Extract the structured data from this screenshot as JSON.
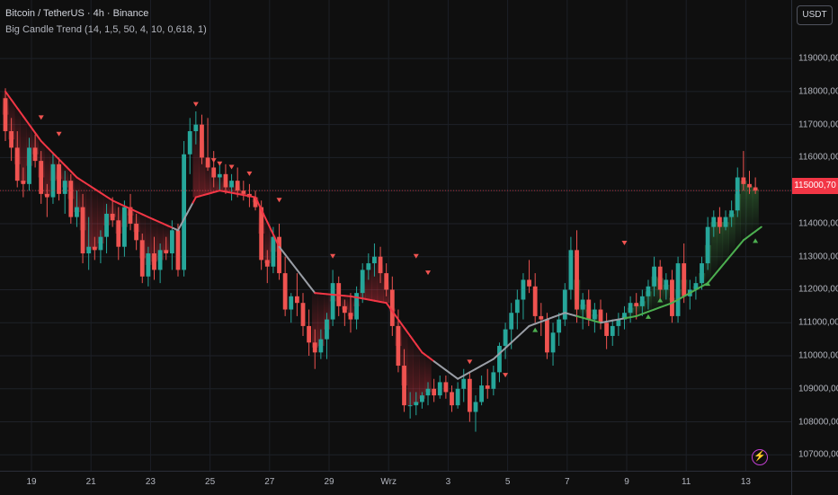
{
  "header": {
    "title": "Bitcoin / TetherUS · 4h · Binance",
    "indicator": "Big Candle Trend (14, 1,5, 50, 4, 10, 0,618, 1)"
  },
  "currency_button": "USDT",
  "last_price": "115000,70",
  "chart_data": {
    "type": "candlestick",
    "price_ticks": [
      "119000,00",
      "118000,00",
      "117000,00",
      "116000,00",
      "115000,00",
      "114000,00",
      "113000,00",
      "112000,00",
      "111000,00",
      "110000,00",
      "109000,00",
      "108000,00",
      "107000,00"
    ],
    "time_ticks": [
      "19",
      "21",
      "23",
      "25",
      "27",
      "29",
      "Wrz",
      "3",
      "5",
      "7",
      "9",
      "11",
      "13"
    ],
    "ylim": [
      106600,
      120500
    ],
    "last_price_value": 115000.7,
    "candles": [
      [
        0,
        117800,
        118100,
        116500,
        116800
      ],
      [
        1,
        116800,
        117200,
        115900,
        116300
      ],
      [
        2,
        116300,
        116800,
        115100,
        115300
      ],
      [
        3,
        115300,
        115700,
        114800,
        115200
      ],
      [
        4,
        115200,
        116600,
        115000,
        116300
      ],
      [
        5,
        116300,
        116700,
        115700,
        115900
      ],
      [
        6,
        115900,
        116200,
        114600,
        114900
      ],
      [
        7,
        114900,
        115200,
        114200,
        114800
      ],
      [
        8,
        114800,
        116100,
        114600,
        115800
      ],
      [
        9,
        115800,
        116000,
        114700,
        114900
      ],
      [
        10,
        114900,
        115600,
        114300,
        115300
      ],
      [
        11,
        115300,
        115500,
        114000,
        114200
      ],
      [
        12,
        114200,
        115000,
        113900,
        114500
      ],
      [
        13,
        114500,
        114900,
        112800,
        113100
      ],
      [
        14,
        113100,
        114200,
        112600,
        113300
      ],
      [
        15,
        113300,
        113600,
        112900,
        113200
      ],
      [
        16,
        113200,
        113800,
        112800,
        113600
      ],
      [
        17,
        113600,
        114600,
        113100,
        114300
      ],
      [
        18,
        114300,
        114800,
        113900,
        114100
      ],
      [
        19,
        114100,
        114500,
        112900,
        113300
      ],
      [
        20,
        113300,
        114700,
        113000,
        114500
      ],
      [
        21,
        114500,
        114900,
        113800,
        114000
      ],
      [
        22,
        114000,
        114300,
        113200,
        113500
      ],
      [
        23,
        113500,
        113700,
        112200,
        112400
      ],
      [
        24,
        112400,
        113300,
        112100,
        113100
      ],
      [
        25,
        113100,
        113600,
        112300,
        112600
      ],
      [
        26,
        112600,
        113400,
        112200,
        113200
      ],
      [
        27,
        113200,
        113600,
        112900,
        113100
      ],
      [
        28,
        113100,
        114100,
        112600,
        113800
      ],
      [
        29,
        113800,
        114000,
        112400,
        112600
      ],
      [
        30,
        112600,
        116500,
        112400,
        116100
      ],
      [
        31,
        116100,
        117200,
        115500,
        116800
      ],
      [
        32,
        116800,
        117400,
        116400,
        117000
      ],
      [
        33,
        117000,
        117300,
        115800,
        116000
      ],
      [
        34,
        116000,
        117200,
        115600,
        115700
      ],
      [
        35,
        115700,
        116200,
        115100,
        115400
      ],
      [
        36,
        115400,
        115800,
        115000,
        115500
      ],
      [
        37,
        115500,
        115800,
        114900,
        115100
      ],
      [
        38,
        115100,
        115500,
        114700,
        115300
      ],
      [
        39,
        115300,
        115700,
        114800,
        115000
      ],
      [
        40,
        115000,
        115300,
        114700,
        114900
      ],
      [
        41,
        114900,
        115200,
        114500,
        114800
      ],
      [
        42,
        114800,
        115000,
        114400,
        114500
      ],
      [
        43,
        114500,
        114700,
        112600,
        112900
      ],
      [
        44,
        112900,
        113200,
        112200,
        112700
      ],
      [
        45,
        112700,
        113900,
        112500,
        113600
      ],
      [
        46,
        113600,
        114000,
        112300,
        112500
      ],
      [
        47,
        112500,
        113000,
        111200,
        111400
      ],
      [
        48,
        111400,
        111900,
        111000,
        111800
      ],
      [
        49,
        111800,
        112500,
        111200,
        111600
      ],
      [
        50,
        111600,
        111900,
        110600,
        110900
      ],
      [
        51,
        110900,
        111400,
        110000,
        110400
      ],
      [
        52,
        110400,
        110800,
        109600,
        110100
      ],
      [
        53,
        110100,
        110800,
        109900,
        110500
      ],
      [
        54,
        110500,
        111300,
        109900,
        111100
      ],
      [
        55,
        111100,
        112600,
        110900,
        112200
      ],
      [
        56,
        112200,
        112400,
        111200,
        111500
      ],
      [
        57,
        111500,
        111700,
        110900,
        111300
      ],
      [
        58,
        111300,
        111900,
        110700,
        111100
      ],
      [
        59,
        111100,
        112100,
        110800,
        111900
      ],
      [
        60,
        111900,
        112800,
        111600,
        112600
      ],
      [
        61,
        112600,
        113100,
        112300,
        112800
      ],
      [
        62,
        112800,
        113400,
        112400,
        113000
      ],
      [
        63,
        113000,
        113300,
        112200,
        112500
      ],
      [
        64,
        112500,
        112800,
        111800,
        112000
      ],
      [
        65,
        112000,
        112400,
        110600,
        110900
      ],
      [
        66,
        110900,
        111400,
        109500,
        109700
      ],
      [
        67,
        109700,
        110200,
        108300,
        108500
      ],
      [
        68,
        108500,
        108900,
        108100,
        108500
      ],
      [
        69,
        108500,
        108900,
        108200,
        108600
      ],
      [
        70,
        108600,
        108900,
        108400,
        108800
      ],
      [
        71,
        108800,
        109200,
        108500,
        109000
      ],
      [
        72,
        109000,
        109300,
        108600,
        108800
      ],
      [
        73,
        108800,
        109400,
        108700,
        109200
      ],
      [
        74,
        109200,
        109400,
        108700,
        108900
      ],
      [
        75,
        108900,
        109100,
        108300,
        108500
      ],
      [
        76,
        108500,
        109200,
        108400,
        109000
      ],
      [
        77,
        109000,
        109600,
        108600,
        109300
      ],
      [
        78,
        109300,
        109500,
        108000,
        108300
      ],
      [
        79,
        108300,
        108800,
        107700,
        108600
      ],
      [
        80,
        108600,
        109400,
        108500,
        109100
      ],
      [
        81,
        109100,
        109600,
        108700,
        109000
      ],
      [
        82,
        109000,
        109700,
        108800,
        109500
      ],
      [
        83,
        109500,
        110400,
        109200,
        110300
      ],
      [
        84,
        110300,
        111000,
        109900,
        110800
      ],
      [
        85,
        110800,
        111600,
        110200,
        111300
      ],
      [
        86,
        111300,
        112000,
        110800,
        111700
      ],
      [
        87,
        111700,
        112500,
        111100,
        112300
      ],
      [
        88,
        112300,
        112900,
        111900,
        112100
      ],
      [
        89,
        112100,
        112500,
        111000,
        111200
      ],
      [
        90,
        111200,
        111600,
        110600,
        111100
      ],
      [
        91,
        111100,
        111300,
        109900,
        110100
      ],
      [
        92,
        110100,
        111000,
        109700,
        110700
      ],
      [
        93,
        110700,
        111300,
        110300,
        111100
      ],
      [
        94,
        111100,
        112200,
        110900,
        112000
      ],
      [
        95,
        112000,
        113600,
        111700,
        113200
      ],
      [
        96,
        113200,
        113800,
        111000,
        111400
      ],
      [
        97,
        111400,
        111900,
        110800,
        111700
      ],
      [
        98,
        111700,
        112000,
        110900,
        111100
      ],
      [
        99,
        111100,
        111600,
        110700,
        111400
      ],
      [
        100,
        111400,
        111700,
        110800,
        111000
      ],
      [
        101,
        111000,
        111300,
        110200,
        110600
      ],
      [
        102,
        110600,
        111100,
        110300,
        110900
      ],
      [
        103,
        110900,
        111300,
        110600,
        111100
      ],
      [
        104,
        111100,
        111500,
        110800,
        111300
      ],
      [
        105,
        111300,
        111800,
        111000,
        111600
      ],
      [
        106,
        111600,
        111900,
        111100,
        111500
      ],
      [
        107,
        111500,
        112000,
        111200,
        111800
      ],
      [
        108,
        111800,
        112300,
        111400,
        112100
      ],
      [
        109,
        112100,
        113000,
        111800,
        112700
      ],
      [
        110,
        112700,
        112900,
        111700,
        112000
      ],
      [
        111,
        112000,
        112500,
        111700,
        112300
      ],
      [
        112,
        112300,
        112600,
        111000,
        111200
      ],
      [
        113,
        111200,
        113000,
        111000,
        112800
      ],
      [
        114,
        112800,
        113400,
        111600,
        111800
      ],
      [
        115,
        111800,
        112300,
        111400,
        112000
      ],
      [
        116,
        112000,
        112400,
        111700,
        112200
      ],
      [
        117,
        112200,
        113000,
        112000,
        112800
      ],
      [
        118,
        112800,
        114200,
        112600,
        113900
      ],
      [
        119,
        113900,
        114400,
        113600,
        114200
      ],
      [
        120,
        114200,
        114500,
        113700,
        113900
      ],
      [
        121,
        113900,
        114400,
        113800,
        114200
      ],
      [
        122,
        114200,
        114700,
        113900,
        114400
      ],
      [
        123,
        114400,
        115700,
        114200,
        115400
      ],
      [
        124,
        115400,
        116200,
        115000,
        115200
      ],
      [
        125,
        115200,
        115600,
        114900,
        115100
      ],
      [
        126,
        115100,
        115400,
        114900,
        115000
      ]
    ],
    "trend_line": [
      [
        0,
        118000
      ],
      [
        6,
        116500
      ],
      [
        12,
        115400
      ],
      [
        18,
        114700
      ],
      [
        24,
        114200
      ],
      [
        29,
        113800
      ],
      [
        32,
        114800
      ],
      [
        36,
        115000
      ],
      [
        42,
        114800
      ],
      [
        46,
        113300
      ],
      [
        52,
        111900
      ],
      [
        58,
        111800
      ],
      [
        64,
        111600
      ],
      [
        70,
        110100
      ],
      [
        76,
        109300
      ],
      [
        82,
        109900
      ],
      [
        88,
        110900
      ],
      [
        94,
        111300
      ],
      [
        100,
        111000
      ],
      [
        106,
        111200
      ],
      [
        112,
        111600
      ],
      [
        118,
        112200
      ],
      [
        124,
        113500
      ],
      [
        127,
        113900
      ]
    ],
    "trend_colors": {
      "down": "#f23645",
      "neutral": "#9a9ea6",
      "up": "#4caf50"
    },
    "candle_colors": {
      "up": "#26a69a",
      "down": "#ef5350"
    },
    "signals_down": [
      [
        6,
        117200
      ],
      [
        9,
        116700
      ],
      [
        32,
        117600
      ],
      [
        35,
        115900
      ],
      [
        36,
        115800
      ],
      [
        38,
        115700
      ],
      [
        41,
        115500
      ],
      [
        46,
        114700
      ],
      [
        55,
        113000
      ],
      [
        69,
        113000
      ],
      [
        71,
        112500
      ],
      [
        78,
        109800
      ],
      [
        84,
        109400
      ],
      [
        104,
        113400
      ]
    ],
    "signals_up": [
      [
        89,
        110800
      ],
      [
        108,
        111200
      ],
      [
        110,
        111700
      ],
      [
        118,
        112200
      ],
      [
        126,
        113500
      ]
    ]
  }
}
